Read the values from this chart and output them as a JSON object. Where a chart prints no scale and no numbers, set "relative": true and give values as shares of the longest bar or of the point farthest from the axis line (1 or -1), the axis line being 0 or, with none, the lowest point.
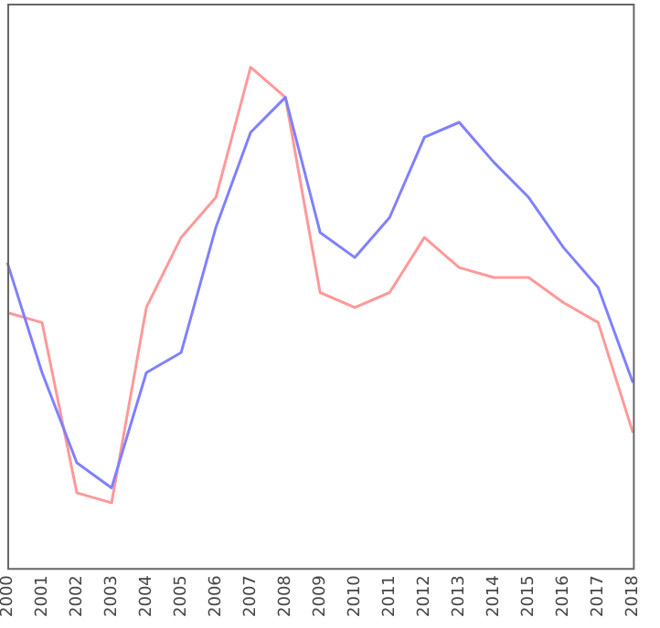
{
  "chart_data": {
    "type": "line",
    "relative": true,
    "categories": [
      "2000",
      "2001",
      "2002",
      "2003",
      "2004",
      "2005",
      "2006",
      "2007",
      "2008",
      "2009",
      "2010",
      "2011",
      "2012",
      "2013",
      "2014",
      "2015",
      "2016",
      "2017",
      "2018"
    ],
    "series": [
      {
        "color": "#8080ff",
        "values": [
          0.61,
          0.39,
          0.21,
          0.16,
          0.39,
          0.43,
          0.68,
          0.87,
          0.94,
          0.67,
          0.62,
          0.7,
          0.86,
          0.89,
          0.81,
          0.74,
          0.64,
          0.56,
          0.37
        ]
      },
      {
        "color": "#ff9999",
        "values": [
          0.51,
          0.49,
          0.15,
          0.13,
          0.52,
          0.66,
          0.74,
          1,
          0.94,
          0.55,
          0.52,
          0.55,
          0.66,
          0.6,
          0.58,
          0.58,
          0.53,
          0.49,
          0.27
        ]
      }
    ],
    "grid": false,
    "legend": false,
    "marker": "none",
    "line_style": "solid"
  }
}
